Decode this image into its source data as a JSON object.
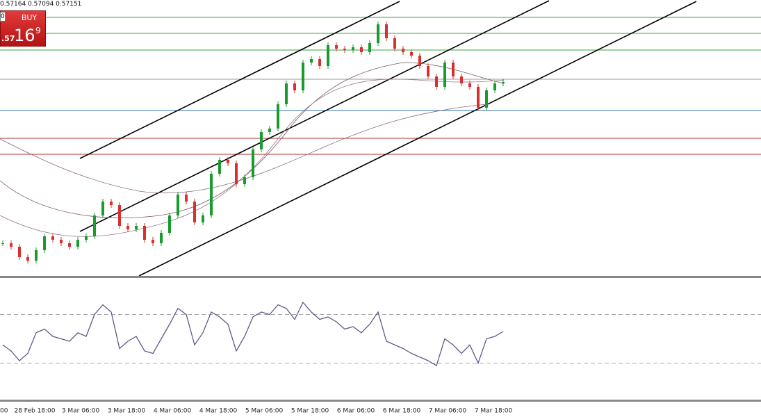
{
  "header": {
    "quote": "0.57164 0.57094 0.57151",
    "button": "BUY",
    "price_prefix": ".57",
    "price_big": "16",
    "price_sup": "9",
    "box": "0"
  },
  "chart_data": {
    "type": "candlestick",
    "x_labels": [
      "00",
      "28 Feb 18:00",
      "3 Mar 06:00",
      "3 Mar 18:00",
      "4 Mar 06:00",
      "4 Mar 18:00",
      "5 Mar 06:00",
      "5 Mar 18:00",
      "6 Mar 06:00",
      "6 Mar 18:00",
      "7 Mar 06:00",
      "7 Mar 18:00"
    ],
    "close": [
      0.56687,
      0.56677,
      0.56647,
      0.56637,
      0.56667,
      0.56707,
      0.56697,
      0.56687,
      0.56677,
      0.56697,
      0.56707,
      0.56767,
      0.56807,
      0.56797,
      0.56737,
      0.56727,
      0.56737,
      0.56697,
      0.56687,
      0.56717,
      0.56767,
      0.56827,
      0.56807,
      0.56747,
      0.56767,
      0.56887,
      0.56927,
      0.56917,
      0.56857,
      0.56877,
      0.56957,
      0.57007,
      0.57017,
      0.57087,
      0.57147,
      0.57127,
      0.57207,
      0.57217,
      0.57197,
      0.57257,
      0.57247,
      0.57243,
      0.57251,
      0.57237,
      0.57263,
      0.57317,
      0.57277,
      0.57247,
      0.57237,
      0.57227,
      0.57197,
      0.57167,
      0.57137,
      0.57207,
      0.57167,
      0.57147,
      0.57137,
      0.57077,
      0.57127,
      0.57147,
      0.57151
    ],
    "up_color": "#1a9b2e",
    "down_color": "#d9302f",
    "ylim": [
      0.56591,
      0.57387
    ],
    "levels": [
      {
        "value": 0.57337,
        "color": "#3aa53a"
      },
      {
        "value": 0.57291,
        "color": "#3aa53a"
      },
      {
        "value": 0.57243,
        "color": "#3aa53a"
      },
      {
        "value": 0.57159,
        "color": "#999999"
      },
      {
        "value": 0.57069,
        "color": "#2a6fb8"
      },
      {
        "value": 0.56989,
        "color": "#b03030"
      },
      {
        "value": 0.56943,
        "color": "#b03030"
      }
    ],
    "rsi": {
      "values": [
        45,
        40,
        32,
        38,
        55,
        58,
        52,
        50,
        48,
        55,
        52,
        70,
        78,
        72,
        42,
        48,
        52,
        40,
        38,
        50,
        62,
        75,
        70,
        45,
        55,
        72,
        68,
        62,
        40,
        52,
        68,
        72,
        70,
        78,
        75,
        66,
        80,
        72,
        66,
        68,
        64,
        58,
        60,
        55,
        62,
        72,
        48,
        45,
        42,
        38,
        35,
        32,
        28,
        50,
        45,
        38,
        45,
        30,
        50,
        52,
        56
      ],
      "color": "#5a5a8a",
      "ylim": [
        0,
        100
      ],
      "levels": [
        70,
        30
      ]
    }
  }
}
